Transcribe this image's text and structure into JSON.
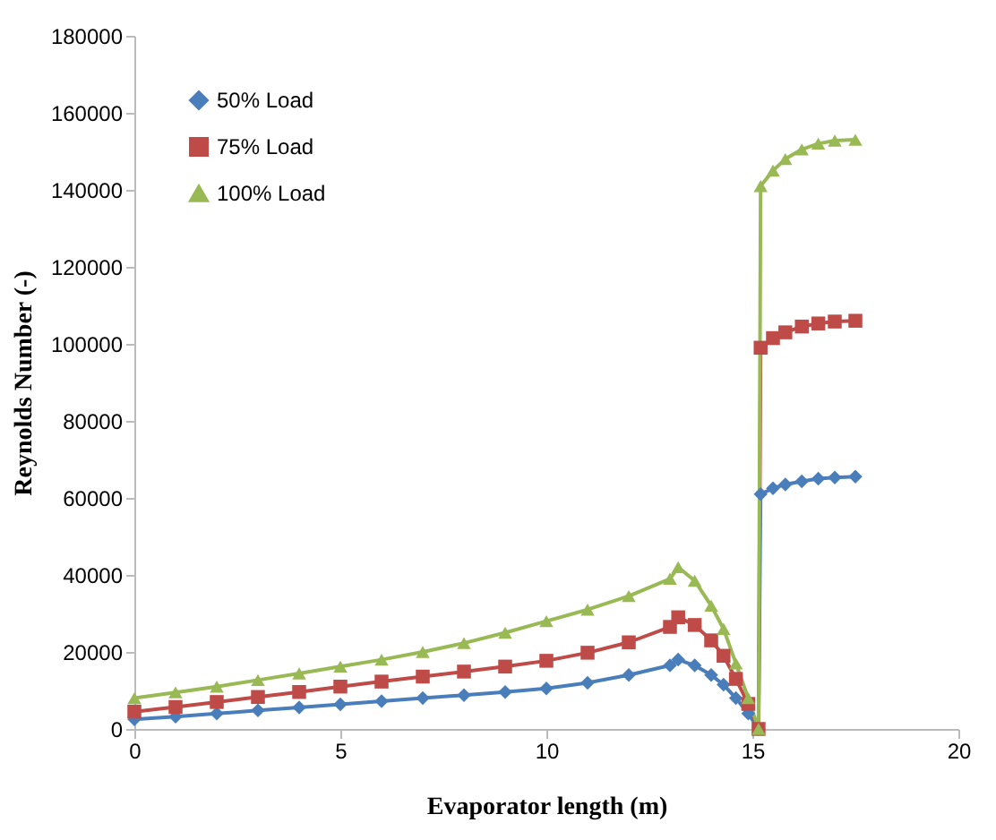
{
  "chart_data": {
    "type": "line",
    "xlabel": "Evaporator length (m)",
    "ylabel": "Reynolds Number (-)",
    "x": [
      0,
      1,
      2,
      3,
      4,
      5,
      6,
      7,
      8,
      9,
      10,
      11,
      12,
      13,
      13.2,
      13.6,
      14,
      14.3,
      14.6,
      14.9,
      15.15,
      15.2,
      15.5,
      15.8,
      16.2,
      16.6,
      17,
      17.5
    ],
    "series": [
      {
        "name": "50% Load",
        "color": "#4a7ebb",
        "marker": "diamond",
        "values": [
          2500,
          3200,
          4000,
          4800,
          5600,
          6400,
          7200,
          8000,
          8800,
          9600,
          10500,
          12000,
          14000,
          16500,
          18000,
          16500,
          14000,
          11500,
          8000,
          4000,
          0,
          61000,
          62500,
          63500,
          64300,
          65000,
          65300,
          65500
        ]
      },
      {
        "name": "75% Load",
        "color": "#be4b48",
        "marker": "square",
        "values": [
          4500,
          5700,
          7000,
          8300,
          9600,
          11000,
          12300,
          13600,
          14900,
          16200,
          17700,
          19800,
          22500,
          26500,
          29000,
          27000,
          23000,
          19000,
          13000,
          6500,
          0,
          99000,
          101500,
          103000,
          104500,
          105300,
          105800,
          106000
        ]
      },
      {
        "name": "100% Load",
        "color": "#98b954",
        "marker": "triangle",
        "values": [
          8000,
          9500,
          11000,
          12700,
          14400,
          16200,
          18000,
          20000,
          22300,
          25000,
          28000,
          31000,
          34500,
          39000,
          42000,
          38500,
          32000,
          26000,
          17000,
          8000,
          0,
          141000,
          145000,
          148000,
          150500,
          152000,
          152800,
          153000
        ]
      }
    ],
    "xlim": [
      0,
      20
    ],
    "xticks": [
      0,
      5,
      10,
      15,
      20
    ],
    "ylim": [
      0,
      180000
    ],
    "yticks": [
      0,
      20000,
      40000,
      60000,
      80000,
      100000,
      120000,
      140000,
      160000,
      180000
    ],
    "grid": false,
    "legend": "top left",
    "line_style": "solid"
  }
}
